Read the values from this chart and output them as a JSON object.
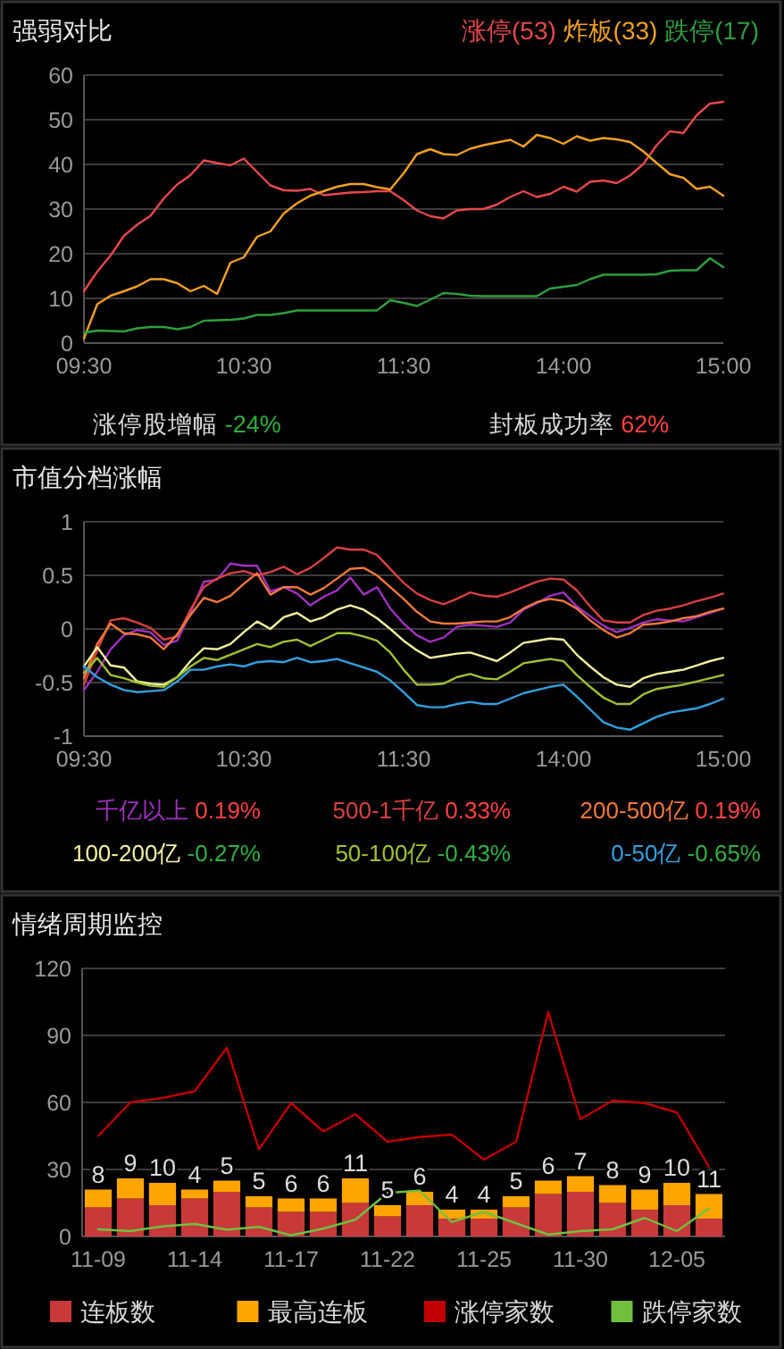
{
  "chart_data": [
    {
      "type": "line",
      "title": "强弱对比",
      "legend": "top right",
      "grid": "y",
      "categories": [
        "09:30",
        null,
        null,
        null,
        null,
        null,
        null,
        null,
        null,
        null,
        null,
        null,
        "10:30",
        null,
        null,
        null,
        null,
        null,
        null,
        null,
        null,
        null,
        null,
        null,
        "11:30",
        null,
        null,
        null,
        null,
        null,
        null,
        null,
        null,
        null,
        null,
        null,
        "14:00",
        null,
        null,
        null,
        null,
        null,
        null,
        null,
        null,
        null,
        null,
        null,
        "15:00"
      ],
      "ylim": [
        0,
        60
      ],
      "yticks": [
        0,
        10,
        20,
        30,
        40,
        50,
        60
      ],
      "annotations": [
        "涨停股增幅 -24%",
        "封板成功率 62%"
      ],
      "series": [
        {
          "name": "涨停(53)",
          "color": "#e8484a",
          "values": [
            11.6,
            16,
            19.6,
            24,
            26.5,
            28.5,
            32.4,
            35.5,
            37.6,
            40.9,
            40.3,
            39.8,
            41.3,
            38.3,
            35.3,
            34.2,
            34.1,
            34.5,
            33.1,
            33.4,
            33.7,
            33.8,
            34,
            34,
            32,
            29.7,
            28.4,
            27.9,
            29.7,
            30,
            30,
            31,
            32.7,
            34,
            32.7,
            33.4,
            35,
            33.9,
            36.1,
            36.4,
            35.8,
            37.5,
            40.1,
            44.3,
            47.4,
            47,
            51,
            53.6,
            54
          ]
        },
        {
          "name": "炸板(33)",
          "color": "#f0a020",
          "values": [
            1,
            8.7,
            10.6,
            11.6,
            12.7,
            14.3,
            14.3,
            13.4,
            11.6,
            12.8,
            11,
            18,
            19.2,
            23.8,
            25,
            29,
            31.3,
            33,
            34,
            35,
            35.6,
            35.6,
            34.9,
            34.4,
            38,
            42.3,
            43.4,
            42.3,
            42.1,
            43.5,
            44.3,
            44.9,
            45.5,
            44,
            46.6,
            45.9,
            44.6,
            46.3,
            45.3,
            45.9,
            45.6,
            45,
            42.9,
            40.3,
            37.8,
            37,
            34.5,
            35,
            33
          ]
        },
        {
          "name": "跌停(17)",
          "color": "#2e9e3e",
          "values": [
            2.3,
            2.8,
            2.7,
            2.6,
            3.3,
            3.6,
            3.6,
            3.1,
            3.6,
            5,
            5.1,
            5.2,
            5.5,
            6.3,
            6.3,
            6.7,
            7.3,
            7.3,
            7.3,
            7.3,
            7.3,
            7.3,
            7.3,
            9.6,
            9,
            8.3,
            9.7,
            11.2,
            11,
            10.6,
            10.5,
            10.5,
            10.5,
            10.5,
            10.5,
            12.2,
            12.6,
            13,
            14.3,
            15.3,
            15.3,
            15.3,
            15.3,
            15.4,
            16.2,
            16.3,
            16.3,
            19,
            17
          ]
        }
      ]
    },
    {
      "type": "line",
      "title": "市值分档涨幅",
      "legend": "bottom",
      "grid": "y",
      "categories": [
        "09:30",
        null,
        null,
        null,
        null,
        null,
        null,
        null,
        null,
        null,
        null,
        null,
        "10:30",
        null,
        null,
        null,
        null,
        null,
        null,
        null,
        null,
        null,
        null,
        null,
        "11:30",
        null,
        null,
        null,
        null,
        null,
        null,
        null,
        null,
        null,
        null,
        null,
        "14:00",
        null,
        null,
        null,
        null,
        null,
        null,
        null,
        null,
        null,
        null,
        null,
        "15:00"
      ],
      "ylim": [
        -1,
        1
      ],
      "yticks": [
        -1,
        -0.5,
        0,
        0.5,
        1
      ],
      "series": [
        {
          "name": "千亿以上 0.19%",
          "color": "#a030c0",
          "values": [
            -0.57,
            -0.4,
            -0.19,
            -0.06,
            -0.01,
            -0.03,
            -0.15,
            -0.11,
            0.15,
            0.44,
            0.46,
            0.61,
            0.59,
            0.59,
            0.35,
            0.39,
            0.33,
            0.22,
            0.3,
            0.36,
            0.48,
            0.32,
            0.39,
            0.19,
            0.05,
            -0.06,
            -0.12,
            -0.08,
            0.02,
            0.04,
            0.03,
            0.02,
            0.06,
            0.18,
            0.24,
            0.31,
            0.34,
            0.21,
            0.12,
            0.03,
            -0.03,
            0.01,
            0.06,
            0.09,
            0.08,
            0.07,
            0.11,
            0.15,
            0.19
          ]
        },
        {
          "name": "500-1千亿 0.33%",
          "color": "#d84040",
          "values": [
            -0.52,
            -0.2,
            0.08,
            0.1,
            0.06,
            0.01,
            -0.1,
            -0.07,
            0.18,
            0.39,
            0.47,
            0.52,
            0.54,
            0.5,
            0.53,
            0.58,
            0.51,
            0.57,
            0.66,
            0.76,
            0.74,
            0.74,
            0.69,
            0.56,
            0.43,
            0.33,
            0.27,
            0.23,
            0.28,
            0.34,
            0.31,
            0.3,
            0.34,
            0.39,
            0.44,
            0.47,
            0.46,
            0.36,
            0.21,
            0.08,
            0.06,
            0.06,
            0.13,
            0.17,
            0.19,
            0.22,
            0.26,
            0.29,
            0.33
          ]
        },
        {
          "name": "200-500亿 0.19%",
          "color": "#f07838",
          "values": [
            -0.46,
            -0.14,
            0.05,
            -0.04,
            -0.05,
            -0.08,
            -0.19,
            -0.05,
            0.13,
            0.29,
            0.25,
            0.31,
            0.42,
            0.52,
            0.32,
            0.39,
            0.39,
            0.32,
            0.38,
            0.47,
            0.56,
            0.57,
            0.5,
            0.39,
            0.28,
            0.16,
            0.07,
            0.05,
            0.05,
            0.06,
            0.07,
            0.07,
            0.11,
            0.19,
            0.25,
            0.28,
            0.26,
            0.19,
            0.08,
            -0.01,
            -0.08,
            -0.04,
            0.04,
            0.05,
            0.07,
            0.1,
            0.12,
            0.16,
            0.19
          ]
        },
        {
          "name": "100-200亿 -0.27%",
          "color": "#f0f0a0",
          "values": [
            -0.35,
            -0.17,
            -0.34,
            -0.36,
            -0.49,
            -0.51,
            -0.52,
            -0.45,
            -0.3,
            -0.18,
            -0.19,
            -0.14,
            -0.03,
            0.07,
            0,
            0.11,
            0.15,
            0.07,
            0.11,
            0.18,
            0.22,
            0.18,
            0.1,
            0,
            -0.11,
            -0.2,
            -0.27,
            -0.25,
            -0.23,
            -0.22,
            -0.26,
            -0.3,
            -0.22,
            -0.13,
            -0.11,
            -0.09,
            -0.1,
            -0.24,
            -0.35,
            -0.45,
            -0.52,
            -0.54,
            -0.46,
            -0.42,
            -0.4,
            -0.38,
            -0.34,
            -0.3,
            -0.27
          ]
        },
        {
          "name": "50-100亿 -0.43%",
          "color": "#a0c030",
          "values": [
            -0.41,
            -0.27,
            -0.43,
            -0.46,
            -0.5,
            -0.53,
            -0.54,
            -0.45,
            -0.35,
            -0.27,
            -0.29,
            -0.24,
            -0.19,
            -0.14,
            -0.17,
            -0.12,
            -0.1,
            -0.16,
            -0.1,
            -0.04,
            -0.04,
            -0.07,
            -0.11,
            -0.22,
            -0.38,
            -0.52,
            -0.52,
            -0.51,
            -0.45,
            -0.42,
            -0.46,
            -0.47,
            -0.4,
            -0.32,
            -0.3,
            -0.28,
            -0.3,
            -0.43,
            -0.54,
            -0.64,
            -0.7,
            -0.7,
            -0.61,
            -0.56,
            -0.54,
            -0.52,
            -0.49,
            -0.46,
            -0.43
          ]
        },
        {
          "name": "0-50亿 -0.65%",
          "color": "#30a0e0",
          "values": [
            -0.35,
            -0.45,
            -0.52,
            -0.57,
            -0.59,
            -0.58,
            -0.57,
            -0.49,
            -0.38,
            -0.38,
            -0.35,
            -0.33,
            -0.35,
            -0.31,
            -0.3,
            -0.31,
            -0.27,
            -0.31,
            -0.3,
            -0.28,
            -0.32,
            -0.36,
            -0.4,
            -0.48,
            -0.59,
            -0.71,
            -0.73,
            -0.73,
            -0.7,
            -0.68,
            -0.7,
            -0.7,
            -0.65,
            -0.6,
            -0.57,
            -0.54,
            -0.52,
            -0.63,
            -0.75,
            -0.87,
            -0.92,
            -0.94,
            -0.88,
            -0.82,
            -0.78,
            -0.76,
            -0.74,
            -0.7,
            -0.65
          ]
        }
      ]
    },
    {
      "type": "bar",
      "title": "情绪周期监控",
      "legend": "bottom",
      "grid": "y",
      "stacked": true,
      "categories": [
        "11-09",
        null,
        null,
        "11-14",
        null,
        null,
        "11-17",
        null,
        null,
        "11-22",
        null,
        null,
        "11-25",
        null,
        null,
        "11-30",
        null,
        null,
        "12-05",
        null
      ],
      "ylim": [
        0,
        120
      ],
      "yticks": [
        0,
        30,
        60,
        90,
        120
      ],
      "series": [
        {
          "name": "连板数",
          "type": "bar",
          "color": "#c8393a",
          "values": [
            13,
            17,
            14,
            17,
            20,
            13,
            11,
            11,
            15,
            9,
            14,
            8,
            8,
            13,
            19,
            20,
            15,
            12,
            14,
            8
          ]
        },
        {
          "name": "最高连板",
          "type": "bar",
          "color": "#ffa500",
          "values": [
            8,
            9,
            10,
            4,
            5,
            5,
            6,
            6,
            11,
            5,
            6,
            4,
            4,
            5,
            6,
            7,
            8,
            9,
            10,
            11
          ],
          "value_labels": [
            "8",
            "9",
            "10",
            "4",
            "5",
            "5",
            "6",
            "6",
            "11",
            "5",
            "6",
            "4",
            "4",
            "5",
            "6",
            "7",
            "8",
            "9",
            "10",
            "11"
          ]
        },
        {
          "name": "涨停家数",
          "type": "line",
          "color": "#c00000",
          "values": [
            45,
            60,
            62,
            65,
            84.5,
            39,
            59.7,
            47,
            54.7,
            42.4,
            44.5,
            45.6,
            34.4,
            42.4,
            100.5,
            52.5,
            60.8,
            59.7,
            55.5,
            31.2
          ]
        },
        {
          "name": "跌停家数",
          "type": "line",
          "color": "#70c040",
          "values": [
            3.2,
            2.4,
            4.5,
            5.6,
            3,
            4.3,
            0.5,
            3.5,
            7.5,
            19.5,
            20.5,
            6.4,
            11,
            5.9,
            0.8,
            2.4,
            3.2,
            8.3,
            2.4,
            12.5
          ]
        }
      ]
    }
  ]
}
